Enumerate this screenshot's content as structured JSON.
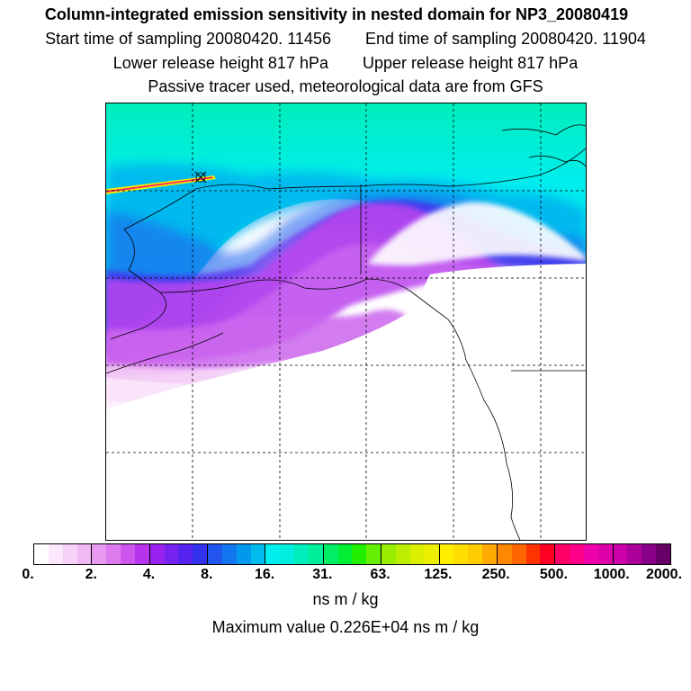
{
  "title": "Column-integrated emission sensitivity in nested domain for NP3_20080419",
  "sampling": {
    "start_label": "Start time of sampling",
    "start_value": "20080420. 11456",
    "end_label": "End time of sampling",
    "end_value": "20080420. 11904"
  },
  "release": {
    "lower_label": "Lower release height",
    "lower_value": "817 hPa",
    "upper_label": "Upper release height",
    "upper_value": "817 hPa"
  },
  "note": "Passive tracer used, meteorological data are from GFS",
  "colorbar": {
    "ticks": [
      "0.",
      "2.",
      "4.",
      "8.",
      "16.",
      "31.",
      "63.",
      "125.",
      "250.",
      "500.",
      "1000.",
      "2000."
    ],
    "colors": [
      [
        "#ffffff",
        "#fce8fc",
        "#f6d2f8",
        "#f0b8f4"
      ],
      [
        "#e89af0",
        "#dc7aee",
        "#cc55ee",
        "#b833ee"
      ],
      [
        "#9922ee",
        "#7722ee",
        "#5522ee",
        "#3333ee"
      ],
      [
        "#2255ee",
        "#1177ee",
        "#0099ee",
        "#00bbee"
      ],
      [
        "#00eeee",
        "#00eedd",
        "#00eebb",
        "#00ee99"
      ],
      [
        "#00ee66",
        "#00ee33",
        "#22ee00",
        "#66ee00"
      ],
      [
        "#99ee00",
        "#bbee00",
        "#ddee00",
        "#eeee00"
      ],
      [
        "#ffee00",
        "#ffdd00",
        "#ffcc00",
        "#ffaa00"
      ],
      [
        "#ff8800",
        "#ff6600",
        "#ff3300",
        "#ff0022"
      ],
      [
        "#ff0066",
        "#ff0088",
        "#ee00aa",
        "#dd00aa"
      ],
      [
        "#cc00aa",
        "#aa0099",
        "#880088",
        "#660066"
      ]
    ]
  },
  "units": "ns m / kg",
  "maximum": "Maximum value  0.226E+04 ns m / kg"
}
